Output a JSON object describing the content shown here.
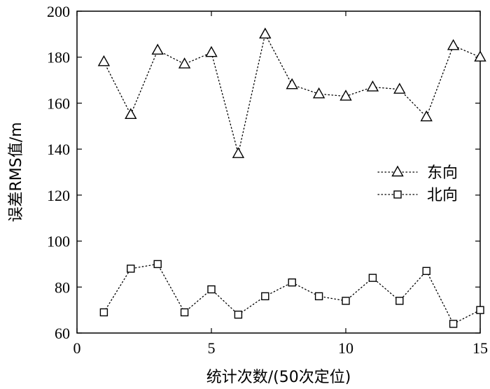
{
  "chart_data": {
    "type": "line",
    "title": "",
    "xlabel": "统计次数/(50次定位)",
    "ylabel": "误差RMS值/m",
    "xlim": [
      0,
      15
    ],
    "ylim": [
      60,
      200
    ],
    "xticks": [
      0,
      5,
      10,
      15
    ],
    "yticks": [
      60,
      80,
      100,
      120,
      140,
      160,
      180,
      200
    ],
    "x": [
      1,
      2,
      3,
      4,
      5,
      6,
      7,
      8,
      9,
      10,
      11,
      12,
      13,
      14,
      15
    ],
    "grid": false,
    "legend_position": "right",
    "series": [
      {
        "name": "东向",
        "marker": "triangle",
        "line_style": "dotted",
        "values": [
          178,
          155,
          183,
          177,
          182,
          138,
          190,
          168,
          164,
          163,
          167,
          166,
          154,
          185,
          180
        ]
      },
      {
        "name": "北向",
        "marker": "square",
        "line_style": "dotted",
        "values": [
          69,
          88,
          90,
          69,
          79,
          68,
          76,
          82,
          76,
          74,
          84,
          74,
          87,
          64,
          70
        ]
      }
    ]
  }
}
